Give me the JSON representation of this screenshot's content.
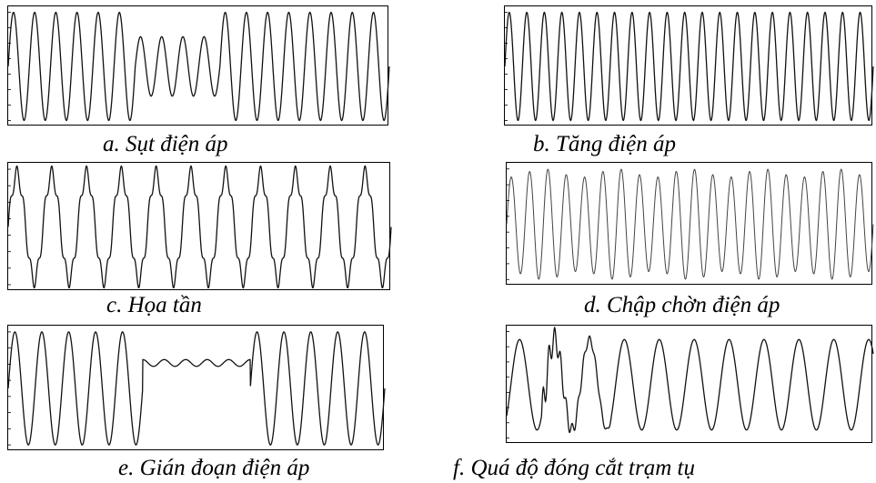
{
  "figure": {
    "captions": {
      "a": "a. Sụt điện áp",
      "b": "b. Tăng điện áp",
      "c": "c. Họa tần",
      "d": "d. Chập chờn điện áp",
      "e": "e. Gián đoạn điện áp",
      "f": "f. Quá độ đóng cắt trạm tụ"
    }
  },
  "chart_data": [
    {
      "id": "a",
      "type": "line",
      "title": "a. Sụt điện áp",
      "xlabel": "",
      "ylabel": "",
      "grid": false,
      "series": [
        {
          "cycles": 18,
          "amplitude_normal": 1.0,
          "amplitude_sag": 0.55,
          "sag_cycles": [
            6,
            10
          ]
        }
      ]
    },
    {
      "id": "b",
      "type": "line",
      "title": "b. Tăng điện áp",
      "xlabel": "",
      "ylabel": "",
      "grid": false,
      "series": [
        {
          "cycles": 21,
          "amplitude": 1.0
        }
      ]
    },
    {
      "id": "c",
      "type": "line",
      "title": "c. Họa tần",
      "xlabel": "",
      "ylabel": "",
      "grid": false,
      "series": [
        {
          "cycles": 11,
          "amplitude": 1.0,
          "harmonic_order": 5,
          "harmonic_ratio": 0.15
        }
      ]
    },
    {
      "id": "d",
      "type": "line",
      "title": "d. Chập chờn điện áp",
      "xlabel": "",
      "ylabel": "",
      "grid": false,
      "series": [
        {
          "cycles": 20,
          "amplitude": 1.0,
          "modulation_depth": 0.15,
          "modulation_cycles": 4
        }
      ]
    },
    {
      "id": "e",
      "type": "line",
      "title": "e. Gián đoạn điện áp",
      "xlabel": "",
      "ylabel": "",
      "grid": false,
      "series": [
        {
          "cycles": 14,
          "amplitude": 1.0,
          "interruption_cycles": [
            5,
            9
          ],
          "residual_amplitude": 0.06
        }
      ]
    },
    {
      "id": "f",
      "type": "line",
      "title": "f. Quá độ đóng cắt trạm tụ",
      "xlabel": "",
      "ylabel": "",
      "grid": false,
      "series": [
        {
          "cycles": 10.5,
          "amplitude": 0.85,
          "transient_cycles": [
            1,
            3
          ]
        }
      ]
    }
  ]
}
